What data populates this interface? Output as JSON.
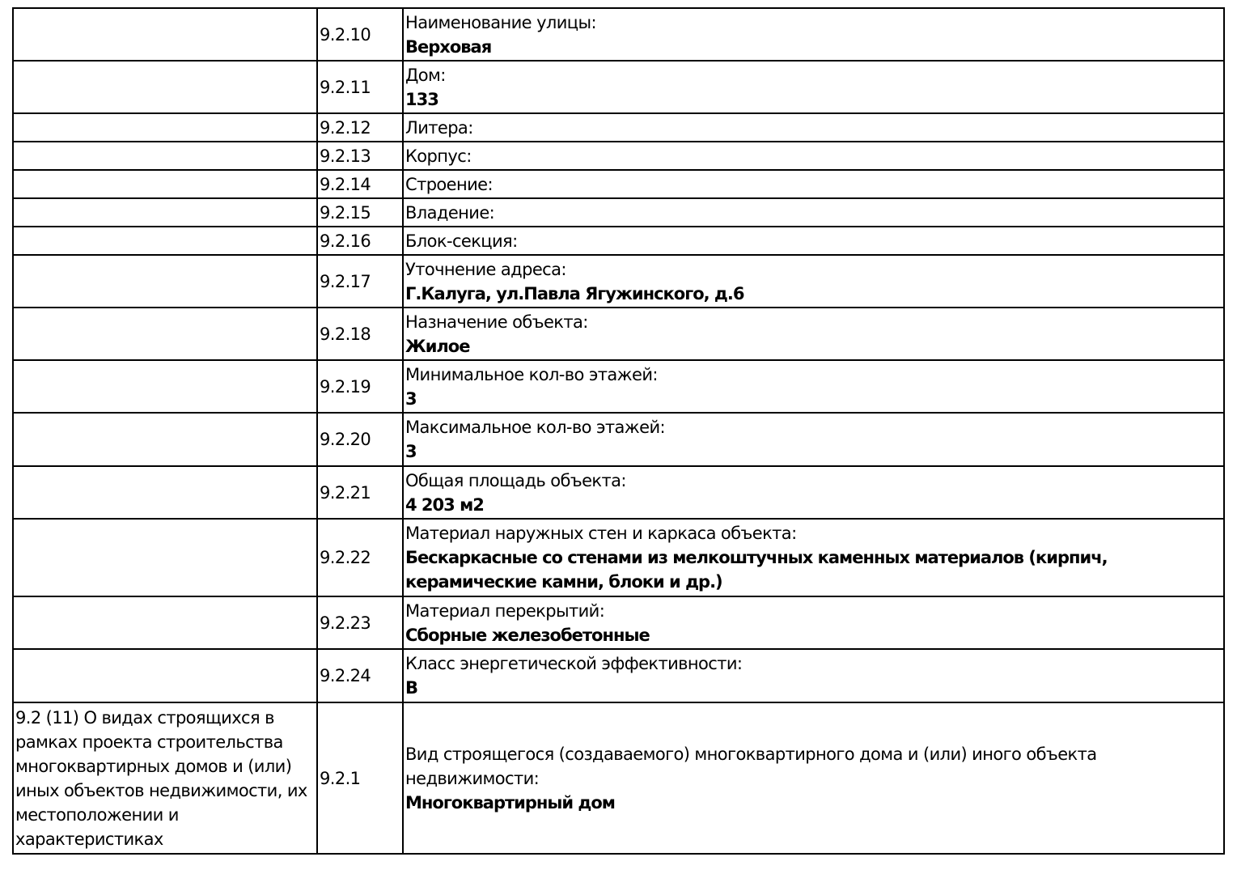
{
  "rows": [
    {
      "section": "",
      "code": "9.2.10",
      "label": "Наименование улицы:",
      "value": "Верховая"
    },
    {
      "section": "",
      "code": "9.2.11",
      "label": "Дом:",
      "value": "133"
    },
    {
      "section": "",
      "code": "9.2.12",
      "label": "Литера:",
      "value": ""
    },
    {
      "section": "",
      "code": "9.2.13",
      "label": "Корпус:",
      "value": ""
    },
    {
      "section": "",
      "code": "9.2.14",
      "label": "Строение:",
      "value": ""
    },
    {
      "section": "",
      "code": "9.2.15",
      "label": "Владение:",
      "value": ""
    },
    {
      "section": "",
      "code": "9.2.16",
      "label": "Блок-секция:",
      "value": ""
    },
    {
      "section": "",
      "code": "9.2.17",
      "label": "Уточнение адреса:",
      "value": "Г.Калуга, ул.Павла Ягужинского, д.6"
    },
    {
      "section": "",
      "code": "9.2.18",
      "label": "Назначение объекта:",
      "value": "Жилое"
    },
    {
      "section": "",
      "code": "9.2.19",
      "label": "Минимальное кол-во этажей:",
      "value": "3"
    },
    {
      "section": "",
      "code": "9.2.20",
      "label": "Максимальное кол-во этажей:",
      "value": "3"
    },
    {
      "section": "",
      "code": "9.2.21",
      "label": "Общая площадь объекта:",
      "value": "4 203 м2"
    },
    {
      "section": "",
      "code": "9.2.22",
      "label": "Материал наружных стен и каркаса объекта:",
      "value": "Бескаркасные со стенами из мелкоштучных каменных материалов (кирпич, керамические камни, блоки и др.)"
    },
    {
      "section": "",
      "code": "9.2.23",
      "label": "Материал перекрытий:",
      "value": "Сборные железобетонные"
    },
    {
      "section": "",
      "code": "9.2.24",
      "label": "Класс энергетической эффективности:",
      "value": "В"
    },
    {
      "section": "9.2 (11) О видах строящихся в рамках проекта строительства многоквартирных домов и (или) иных объектов недвижимости, их местоположении и характеристиках",
      "code": "9.2.1",
      "label": "Вид строящегося (создаваемого) многоквартирного дома и (или) иного объекта недвижимости:",
      "value": "Многоквартирный дом"
    }
  ]
}
